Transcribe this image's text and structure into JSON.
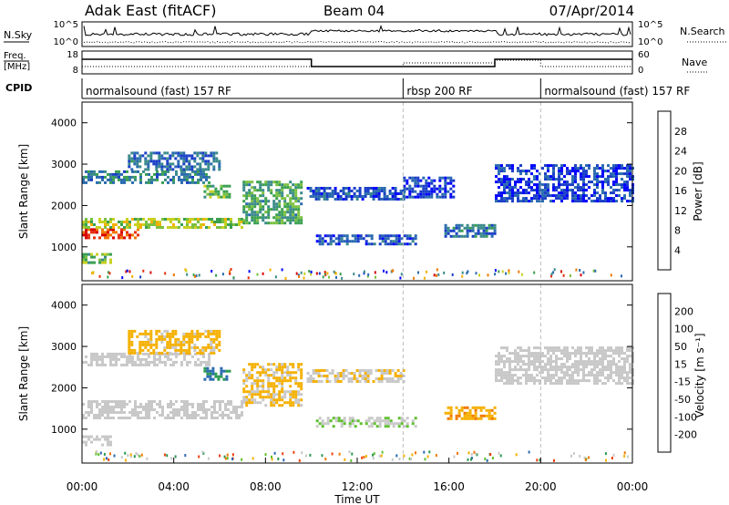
{
  "header": {
    "radar": "Adak East (fitACF)",
    "beam": "Beam 04",
    "date": "07/Apr/2014"
  },
  "strips": {
    "nsky_label": "N.Sky",
    "nsearch_label": "N.Search",
    "nsky_ticks": [
      "10^5",
      "10^0"
    ],
    "nsearch_ticks": [
      "10^5",
      "10^0"
    ],
    "freq_label": "Freq.",
    "freq_unit": "[MHz]",
    "freq_ticks": [
      "18",
      "8"
    ],
    "nave_label": "Nave",
    "nave_ticks": [
      "60",
      "0"
    ],
    "cpid_label": "CPID",
    "cpid_segments": [
      {
        "label": "normalsound (fast) 157 RF",
        "start_hr": 0,
        "end_hr": 14
      },
      {
        "label": "rbsp 200 RF",
        "start_hr": 14,
        "end_hr": 20
      },
      {
        "label": "normalsound (fast) 157 RF",
        "start_hr": 20,
        "end_hr": 24
      }
    ]
  },
  "chart_data": [
    {
      "type": "heatmap",
      "panel": "power",
      "ylabel": "Slant Range [km]",
      "ylim": [
        180,
        4500
      ],
      "yticks": [
        "4000",
        "3000",
        "2000",
        "1000"
      ],
      "xlim_hours": [
        0,
        24
      ],
      "colorbar": {
        "label": "Power [dB]",
        "ticks": [
          "28",
          "24",
          "20",
          "16",
          "12",
          "8",
          "4"
        ],
        "range": [
          0,
          30
        ],
        "colors": [
          "#0000ff",
          "#1a3ec8",
          "#2a6ab0",
          "#3a8a8a",
          "#3aa050",
          "#7ac040",
          "#c8d020",
          "#f5b000",
          "#f07800",
          "#e83010",
          "#d80000"
        ]
      },
      "bands": [
        {
          "start_hr": 0.0,
          "end_hr": 1.2,
          "range_low": 600,
          "range_high": 850,
          "level": 14
        },
        {
          "start_hr": 0.0,
          "end_hr": 2.5,
          "range_low": 1250,
          "range_high": 1450,
          "level": 26
        },
        {
          "start_hr": 0.0,
          "end_hr": 7.0,
          "range_low": 1450,
          "range_high": 1700,
          "level": 16
        },
        {
          "start_hr": 7.0,
          "end_hr": 9.6,
          "range_low": 1600,
          "range_high": 2600,
          "level": 12
        },
        {
          "start_hr": 0.0,
          "end_hr": 5.5,
          "range_low": 2550,
          "range_high": 2850,
          "level": 9
        },
        {
          "start_hr": 2.0,
          "end_hr": 6.0,
          "range_low": 2850,
          "range_high": 3300,
          "level": 7
        },
        {
          "start_hr": 5.3,
          "end_hr": 6.4,
          "range_low": 2200,
          "range_high": 2500,
          "level": 14
        },
        {
          "start_hr": 9.8,
          "end_hr": 14.0,
          "range_low": 2150,
          "range_high": 2450,
          "level": 5
        },
        {
          "start_hr": 10.2,
          "end_hr": 14.5,
          "range_low": 1050,
          "range_high": 1300,
          "level": 6
        },
        {
          "start_hr": 14.0,
          "end_hr": 16.2,
          "range_low": 2200,
          "range_high": 2700,
          "level": 4
        },
        {
          "start_hr": 15.8,
          "end_hr": 18.0,
          "range_low": 1250,
          "range_high": 1550,
          "level": 8
        },
        {
          "start_hr": 18.0,
          "end_hr": 24.0,
          "range_low": 2100,
          "range_high": 3000,
          "level": 4
        }
      ]
    },
    {
      "type": "heatmap",
      "panel": "velocity",
      "ylabel": "Slant Range [km]",
      "ylim": [
        180,
        4500
      ],
      "yticks": [
        "4000",
        "3000",
        "2000",
        "1000"
      ],
      "xlim_hours": [
        0,
        24
      ],
      "xticks": [
        "00:00",
        "04:00",
        "08:00",
        "12:00",
        "16:00",
        "20:00",
        "00:00"
      ],
      "xlabel": "Time UT",
      "colorbar": {
        "label": "Velocity [m s⁻¹]",
        "ticks": [
          "200",
          "100",
          "50",
          "15",
          "-15",
          "-50",
          "-100",
          "-200"
        ],
        "range": [
          -250,
          250
        ],
        "colors": [
          "#e00000",
          "#f04010",
          "#f07800",
          "#f5b000",
          "#c8c8c8",
          "#c8c8c8",
          "#60c030",
          "#2a9a50",
          "#2a6ab0",
          "#1a3ec8"
        ]
      },
      "bands": [
        {
          "start_hr": 0.0,
          "end_hr": 1.2,
          "range_low": 600,
          "range_high": 850,
          "value": 0
        },
        {
          "start_hr": 0.0,
          "end_hr": 7.0,
          "range_low": 1250,
          "range_high": 1700,
          "value": 0
        },
        {
          "start_hr": 7.0,
          "end_hr": 9.6,
          "range_low": 1600,
          "range_high": 2600,
          "value": -60
        },
        {
          "start_hr": 0.0,
          "end_hr": 5.5,
          "range_low": 2550,
          "range_high": 2850,
          "value": -5
        },
        {
          "start_hr": 2.0,
          "end_hr": 6.0,
          "range_low": 2850,
          "range_high": 3400,
          "value": -70
        },
        {
          "start_hr": 5.3,
          "end_hr": 6.4,
          "range_low": 2200,
          "range_high": 2500,
          "value": 150
        },
        {
          "start_hr": 9.8,
          "end_hr": 14.0,
          "range_low": 2150,
          "range_high": 2450,
          "value": -40
        },
        {
          "start_hr": 10.2,
          "end_hr": 14.5,
          "range_low": 1050,
          "range_high": 1300,
          "value": 40
        },
        {
          "start_hr": 15.8,
          "end_hr": 18.0,
          "range_low": 1250,
          "range_high": 1550,
          "value": -80
        },
        {
          "start_hr": 18.0,
          "end_hr": 24.0,
          "range_low": 2100,
          "range_high": 3000,
          "value": 0
        }
      ]
    }
  ]
}
